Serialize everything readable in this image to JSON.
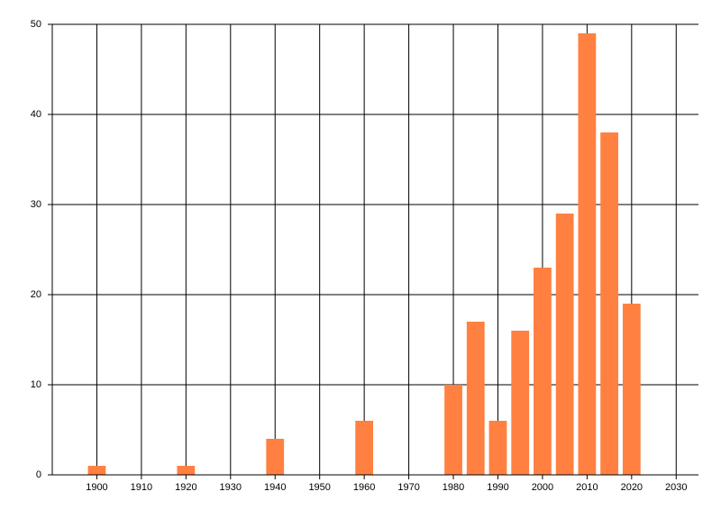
{
  "chart_data": {
    "type": "bar",
    "x": [
      1900,
      1920,
      1940,
      1960,
      1980,
      1985,
      1990,
      1995,
      2000,
      2005,
      2010,
      2015,
      2020
    ],
    "values": [
      1,
      1,
      4,
      6,
      10,
      17,
      6,
      16,
      23,
      29,
      49,
      38,
      19
    ],
    "color": "#ff8040",
    "xlim": [
      1890,
      2035
    ],
    "xticks": [
      1900,
      1910,
      1920,
      1930,
      1940,
      1950,
      1960,
      1970,
      1980,
      1990,
      2000,
      2010,
      2020,
      2030
    ],
    "ylim": [
      0,
      50
    ],
    "yticks": [
      0,
      10,
      20,
      30,
      40,
      50
    ],
    "grid": true
  }
}
